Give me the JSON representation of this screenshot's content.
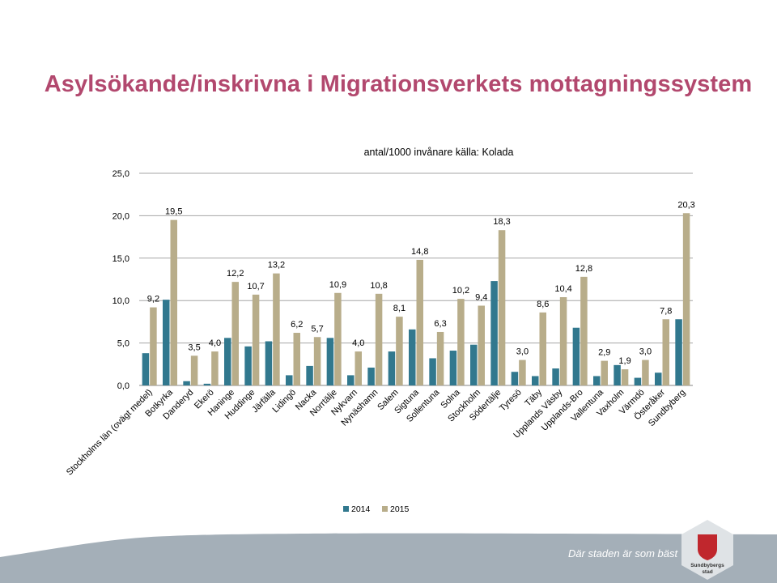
{
  "slide": {
    "title": "Asylsökande/inskrivna i Migrationsverkets mottagningssystem",
    "tagline": "Där staden är som bäst",
    "logo_text": "Sundbybergs stad"
  },
  "colors": {
    "title": "#b2486e",
    "series_2014": "#31788e",
    "series_2015": "#b8ad8a",
    "footer_band": "#a4afb8",
    "logo_hex": "#dfe3e6",
    "logo_shield": "#c0272d"
  },
  "chart_data": {
    "type": "bar",
    "title": "antal/1000 invånare källa: Kolada",
    "xlabel": "",
    "ylabel": "",
    "ylim": [
      0,
      25
    ],
    "yticks": [
      "0,0",
      "5,0",
      "10,0",
      "15,0",
      "20,0",
      "25,0"
    ],
    "ytick_values": [
      0,
      5,
      10,
      15,
      20,
      25
    ],
    "grid": true,
    "legend_position": "bottom",
    "categories": [
      "Stockholms län (ovägt medel)",
      "Botkyrka",
      "Danderyd",
      "Ekerö",
      "Haninge",
      "Huddinge",
      "Järfälla",
      "Lidingö",
      "Nacka",
      "Norrtälje",
      "Nykvarn",
      "Nynäshamn",
      "Salem",
      "Sigtuna",
      "Sollentuna",
      "Solna",
      "Stockholm",
      "Södertälje",
      "Tyresö",
      "Täby",
      "Upplands Väsby",
      "Upplands-Bro",
      "Vallentuna",
      "Vaxholm",
      "Värmdö",
      "Österåker",
      "Sundbyberg"
    ],
    "series": [
      {
        "name": "2014",
        "values": [
          3.8,
          10.1,
          0.5,
          0.2,
          5.6,
          4.6,
          5.2,
          1.2,
          2.3,
          5.6,
          1.2,
          2.1,
          4.0,
          6.6,
          3.2,
          4.1,
          4.8,
          12.3,
          1.6,
          1.1,
          2.0,
          6.8,
          1.1,
          2.4,
          0.9,
          1.5,
          7.8
        ]
      },
      {
        "name": "2015",
        "values": [
          9.2,
          19.5,
          3.5,
          4.0,
          12.2,
          10.7,
          13.2,
          6.2,
          5.7,
          10.9,
          4.0,
          10.8,
          8.1,
          14.8,
          6.3,
          10.2,
          9.4,
          18.3,
          3.0,
          8.6,
          10.4,
          12.8,
          2.9,
          1.9,
          3.0,
          7.8,
          20.3
        ]
      }
    ],
    "data_labels_2015": [
      "9,2",
      "19,5",
      "3,5",
      "4,0",
      "12,2",
      "10,7",
      "13,2",
      "6,2",
      "5,7",
      "10,9",
      "4,0",
      "10,8",
      "8,1",
      "14,8",
      "6,3",
      "10,2",
      "9,4",
      "18,3",
      "3,0",
      "8,6",
      "10,4",
      "12,8",
      "2,9",
      "1,9",
      "3,0",
      "7,8",
      "20,3"
    ]
  }
}
